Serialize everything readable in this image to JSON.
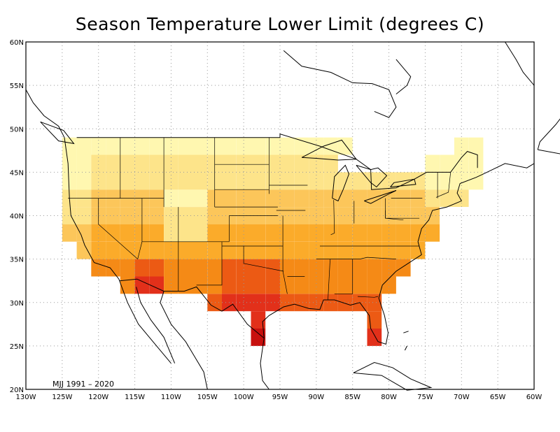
{
  "title": "Season Temperature Lower Limit (degrees C)",
  "period_label": "MJJ 1991 – 2020",
  "map": {
    "lon_range": [
      -130,
      -60
    ],
    "lat_range": [
      20,
      60
    ],
    "lon_ticks": [
      {
        "value": -130,
        "label": "130W"
      },
      {
        "value": -125,
        "label": "125W"
      },
      {
        "value": -120,
        "label": "120W"
      },
      {
        "value": -115,
        "label": "115W"
      },
      {
        "value": -110,
        "label": "110W"
      },
      {
        "value": -105,
        "label": "105W"
      },
      {
        "value": -100,
        "label": "100W"
      },
      {
        "value": -95,
        "label": "95W"
      },
      {
        "value": -90,
        "label": "90W"
      },
      {
        "value": -85,
        "label": "85W"
      },
      {
        "value": -80,
        "label": "80W"
      },
      {
        "value": -75,
        "label": "75W"
      },
      {
        "value": -70,
        "label": "70W"
      },
      {
        "value": -65,
        "label": "65W"
      },
      {
        "value": -60,
        "label": "60W"
      }
    ],
    "lat_ticks": [
      {
        "value": 20,
        "label": "20N"
      },
      {
        "value": 25,
        "label": "25N"
      },
      {
        "value": 30,
        "label": "30N"
      },
      {
        "value": 35,
        "label": "35N"
      },
      {
        "value": 40,
        "label": "40N"
      },
      {
        "value": 45,
        "label": "45N"
      },
      {
        "value": 50,
        "label": "50N"
      },
      {
        "value": 55,
        "label": "55N"
      },
      {
        "value": 60,
        "label": "60N"
      }
    ],
    "grid": "dotted",
    "color_levels": [
      "#fff7b0",
      "#fde48a",
      "#fcc65a",
      "#fbab2a",
      "#f58a16",
      "#ec5a14",
      "#e2301a",
      "#c8100e"
    ],
    "cells": [
      [
        "-125,49",
        "-123,49",
        "-121,49",
        "-119,49",
        "-117,49",
        "-115,49",
        "-113,49",
        "-111,49",
        "-109,49",
        "-107,49",
        "-105,49",
        "-103,49",
        "-101,49",
        "-99,49",
        "-97,49",
        "-95,49",
        "-93,49",
        "-91,49",
        "-89,49",
        "-87,49",
        "-85,49"
      ]
    ]
  }
}
